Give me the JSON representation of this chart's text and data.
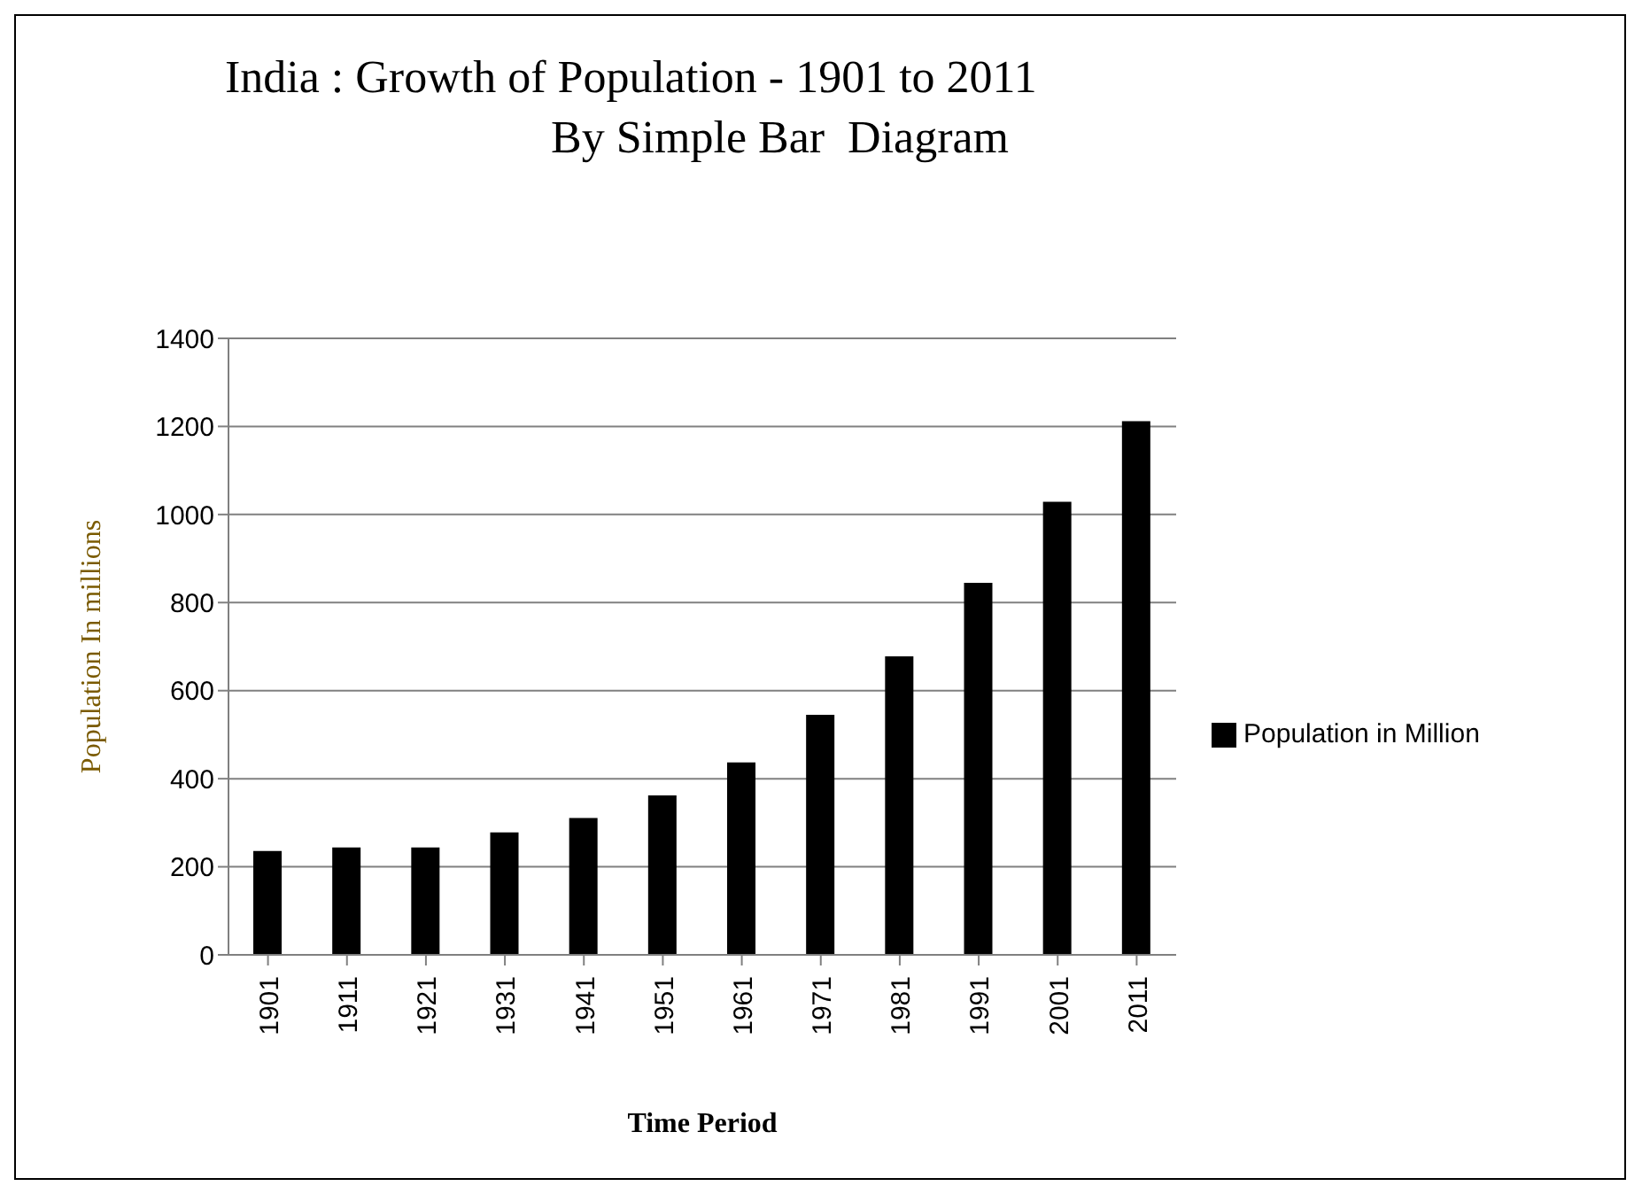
{
  "chart_data": {
    "type": "bar",
    "title": "India : Growth of Population - 1901 to 2011",
    "subtitle": "By Simple Bar  Diagram",
    "xlabel": "Time Period",
    "ylabel": "Population  In  millions",
    "categories": [
      "1901",
      "1911",
      "1921",
      "1931",
      "1941",
      "1951",
      "1961",
      "1971",
      "1981",
      "1991",
      "2001",
      "2011"
    ],
    "series": [
      {
        "name": "Population in Million",
        "color": "#000000",
        "values": [
          236,
          244,
          244,
          278,
          311,
          362,
          437,
          545,
          678,
          845,
          1029,
          1212
        ]
      }
    ],
    "ylim": [
      0,
      1400
    ],
    "yticks": [
      0,
      200,
      400,
      600,
      800,
      1000,
      1200,
      1400
    ],
    "grid": "y",
    "legend": "right"
  }
}
